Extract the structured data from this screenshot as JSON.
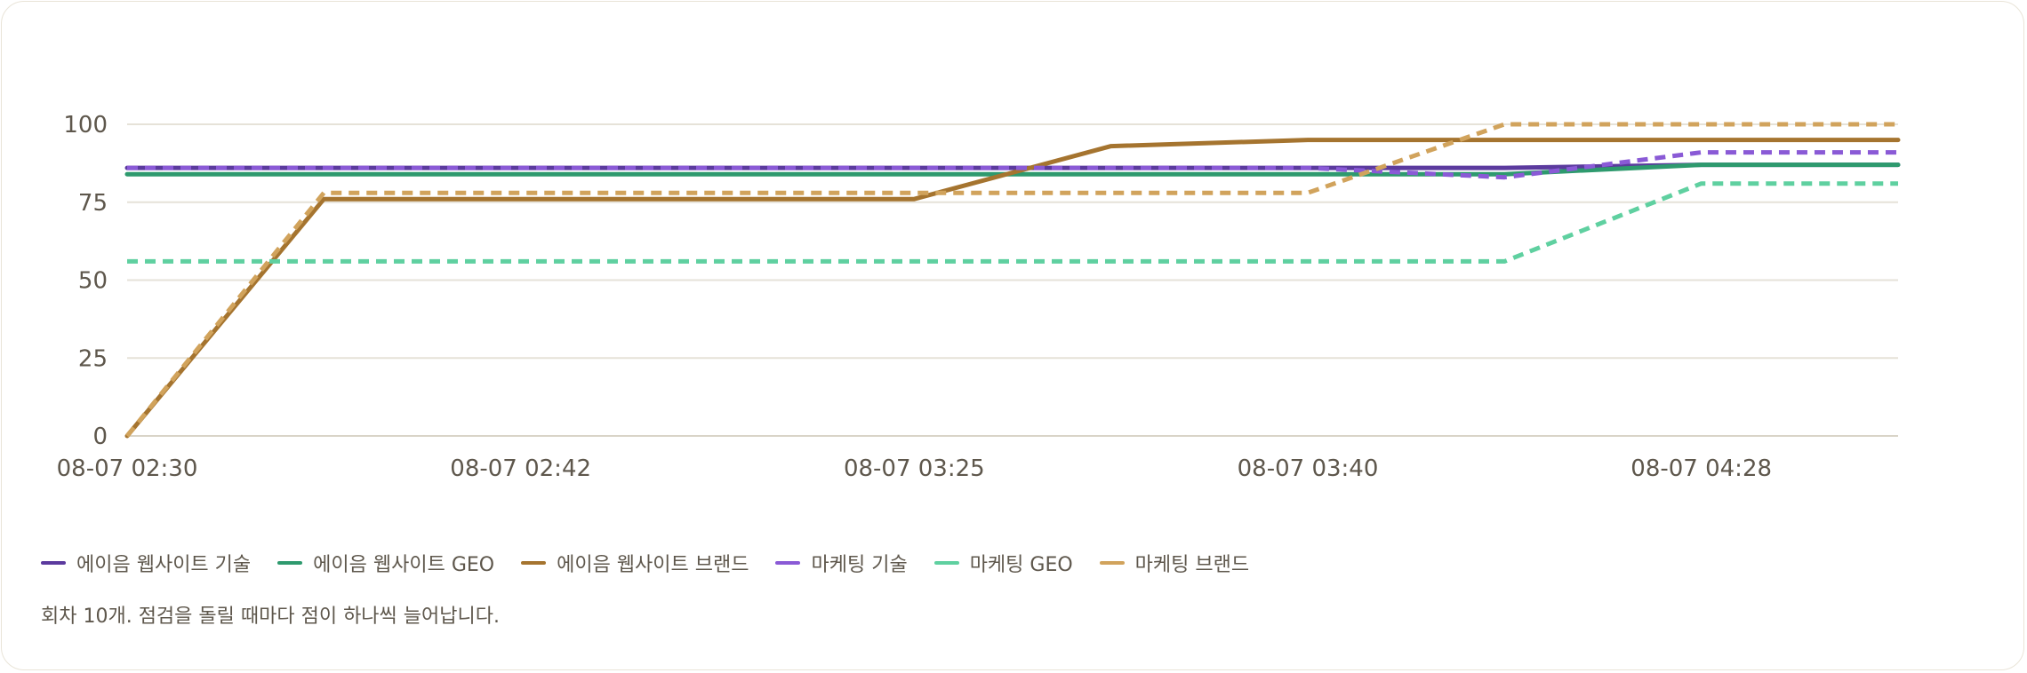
{
  "chart_data": {
    "type": "line",
    "categories": [
      "08-07 02:30",
      "",
      "08-07 02:42",
      "",
      "08-07 03:25",
      "",
      "08-07 03:40",
      "",
      "08-07 04:28",
      ""
    ],
    "x_tick_labels": [
      "08-07 02:30",
      "08-07 02:42",
      "08-07 03:25",
      "08-07 03:40",
      "08-07 04:28"
    ],
    "y_ticks": [
      0,
      25,
      50,
      75,
      100
    ],
    "ylim": [
      0,
      100
    ],
    "grid": true,
    "legend_position": "bottom-left",
    "series": [
      {
        "name": "에이음 웹사이트 기술",
        "color": "#5b3a9e",
        "dashed": false,
        "values": [
          86,
          86,
          86,
          86,
          86,
          86,
          86,
          86,
          87,
          87
        ]
      },
      {
        "name": "에이음 웹사이트 GEO",
        "color": "#2e9a6e",
        "dashed": false,
        "values": [
          84,
          84,
          84,
          84,
          84,
          84,
          84,
          84,
          87,
          87
        ]
      },
      {
        "name": "에이음 웹사이트 브랜드",
        "color": "#a5742f",
        "dashed": false,
        "values": [
          0,
          76,
          76,
          76,
          76,
          93,
          95,
          95,
          95,
          95
        ]
      },
      {
        "name": "마케팅 기술",
        "color": "#8a5ad6",
        "dashed": true,
        "values": [
          86,
          86,
          86,
          86,
          86,
          86,
          86,
          83,
          91,
          91
        ]
      },
      {
        "name": "마케팅 GEO",
        "color": "#5fd0a0",
        "dashed": true,
        "values": [
          56,
          56,
          56,
          56,
          56,
          56,
          56,
          56,
          81,
          81
        ]
      },
      {
        "name": "마케팅 브랜드",
        "color": "#d1a35c",
        "dashed": true,
        "values": [
          0,
          78,
          78,
          78,
          78,
          78,
          78,
          100,
          100,
          100
        ]
      }
    ]
  },
  "note": "회차 10개. 점검을 돌릴 때마다 점이 하나씩 늘어납니다."
}
